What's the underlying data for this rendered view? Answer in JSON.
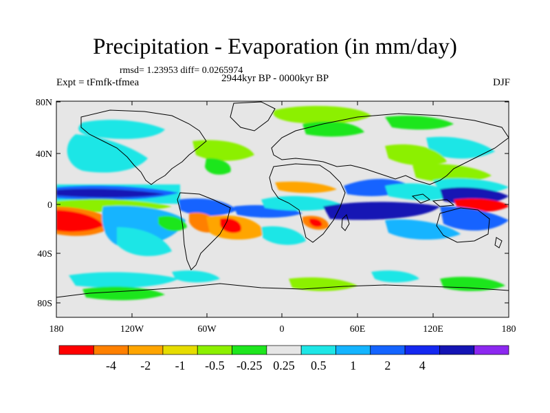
{
  "header": {
    "title": "Precipitation - Evaporation (in mm/day)",
    "stats": "rmsd= 1.23953 diff= 0.0265974",
    "expt": "Expt = tFmfk-tfmea",
    "period": "2944kyr BP - 0000kyr BP",
    "season": "DJF"
  },
  "map": {
    "lat_ticks": [
      "80N",
      "40N",
      "0",
      "40S",
      "80S"
    ],
    "lon_ticks": [
      "180",
      "120W",
      "60W",
      "0",
      "60E",
      "120E",
      "180"
    ],
    "land_border_color": "#000000",
    "background_color": "#e6e6e6"
  },
  "colorbar": {
    "colors": [
      "#ff0000",
      "#ff8000",
      "#ffa500",
      "#e6dc00",
      "#8cf000",
      "#1ee61e",
      "#e6e6e6",
      "#1ee6e6",
      "#14b4ff",
      "#1464ff",
      "#1428f0",
      "#1414b4",
      "#8c28f0"
    ],
    "labels": [
      "-4",
      "-2",
      "-1",
      "-0.5",
      "-0.25",
      "0.25",
      "0.5",
      "1",
      "2",
      "4"
    ]
  }
}
